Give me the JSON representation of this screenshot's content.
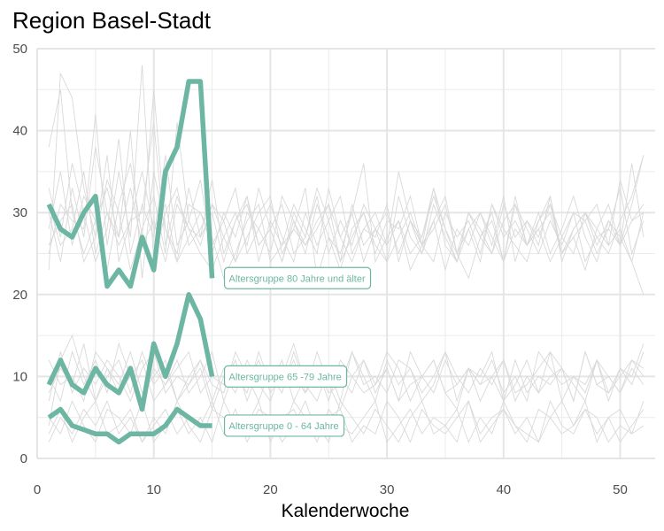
{
  "chart_data": {
    "type": "line",
    "title": "Region Basel-Stadt",
    "xlabel": "Kalenderwoche",
    "ylabel": "",
    "xlim": [
      0,
      53
    ],
    "ylim": [
      0,
      50
    ],
    "x_ticks": [
      0,
      10,
      20,
      30,
      40,
      50
    ],
    "y_ticks": [
      0,
      10,
      20,
      30,
      40,
      50
    ],
    "grid": true,
    "highlight_color": "#6db6a3",
    "background_color": "#d9d9d9",
    "highlight_series": [
      {
        "label": "Altersgruppe 80 Jahre und älter",
        "x": [
          1,
          2,
          3,
          4,
          5,
          6,
          7,
          8,
          9,
          10,
          11,
          12,
          13,
          14,
          15
        ],
        "values": [
          31,
          28,
          27,
          30,
          32,
          21,
          23,
          21,
          27,
          23,
          35,
          38,
          46,
          46,
          22
        ]
      },
      {
        "label": "Altersgruppe 65 -79 Jahre",
        "x": [
          1,
          2,
          3,
          4,
          5,
          6,
          7,
          8,
          9,
          10,
          11,
          12,
          13,
          14,
          15
        ],
        "values": [
          9,
          12,
          9,
          8,
          11,
          9,
          8,
          11,
          6,
          14,
          10,
          14,
          20,
          17,
          10
        ]
      },
      {
        "label": "Altersgruppe 0 - 64 Jahre",
        "x": [
          1,
          2,
          3,
          4,
          5,
          6,
          7,
          8,
          9,
          10,
          11,
          12,
          13,
          14,
          15
        ],
        "values": [
          5,
          6,
          4,
          3.5,
          3,
          3,
          2,
          3,
          3,
          3,
          4,
          6,
          5,
          4,
          4
        ]
      }
    ],
    "background_series": [
      {
        "group": "80+",
        "values": [
          38,
          45,
          30,
          25,
          29,
          33,
          27,
          40,
          22,
          35,
          28,
          24,
          31,
          30,
          27,
          22,
          25,
          29,
          31,
          24,
          26,
          28,
          33,
          22,
          27,
          25,
          30,
          36,
          24,
          27,
          29,
          23,
          26,
          28,
          31,
          25,
          22,
          27,
          30,
          24,
          28,
          26,
          29,
          32,
          25,
          27,
          23,
          28,
          31,
          26,
          29,
          30
        ]
      },
      {
        "group": "80+",
        "values": [
          23,
          47,
          44,
          33,
          27,
          37,
          24,
          29,
          30,
          41,
          26,
          32,
          28,
          25,
          23,
          27,
          30,
          26,
          33,
          28,
          24,
          29,
          25,
          31,
          27,
          23,
          28,
          30,
          26,
          24,
          32,
          27,
          25,
          29,
          23,
          28,
          26,
          30,
          27,
          24,
          31,
          28,
          25,
          29,
          26,
          30,
          24,
          27,
          28,
          33,
          25,
          29
        ]
      },
      {
        "group": "80+",
        "values": [
          25,
          31,
          29,
          28,
          42,
          26,
          35,
          27,
          48,
          24,
          30,
          33,
          26,
          28,
          31,
          29,
          24,
          27,
          30,
          32,
          25,
          28,
          26,
          29,
          31,
          27,
          24,
          28,
          30,
          26,
          29,
          25,
          27,
          32,
          28,
          24,
          30,
          27,
          25,
          29,
          31,
          26,
          28,
          24,
          27,
          30,
          29,
          25,
          28,
          26,
          36,
          27
        ]
      },
      {
        "group": "80+",
        "values": [
          33,
          27,
          36,
          30,
          24,
          28,
          39,
          25,
          31,
          27,
          37,
          26,
          29,
          34,
          25,
          30,
          27,
          32,
          24,
          29,
          26,
          31,
          28,
          25,
          33,
          27,
          30,
          24,
          28,
          26,
          35,
          29,
          25,
          31,
          27,
          24,
          28,
          30,
          26,
          32,
          24,
          29,
          27,
          31,
          25,
          28,
          30,
          26,
          29,
          27,
          24,
          30
        ]
      },
      {
        "group": "80+",
        "values": [
          28,
          35,
          26,
          32,
          29,
          23,
          31,
          36,
          27,
          45,
          28,
          25,
          33,
          27,
          30,
          24,
          29,
          32,
          26,
          28,
          31,
          25,
          27,
          33,
          29,
          24,
          31,
          26,
          28,
          30,
          25,
          29,
          27,
          33,
          26,
          24,
          30,
          28,
          25,
          31,
          27,
          29,
          26,
          32,
          24,
          28,
          30,
          27,
          25,
          29,
          32,
          37
        ]
      },
      {
        "group": "80+",
        "values": [
          30,
          24,
          33,
          27,
          38,
          30,
          26,
          29,
          35,
          28,
          31,
          24,
          27,
          30,
          26,
          29,
          33,
          25,
          28,
          31,
          27,
          24,
          30,
          26,
          29,
          32,
          25,
          28,
          27,
          31,
          24,
          29,
          26,
          33,
          28,
          25,
          30,
          27,
          29,
          24,
          32,
          26,
          28,
          30,
          25,
          27,
          29,
          31,
          26,
          28,
          24,
          20
        ]
      },
      {
        "group": "80+",
        "values": [
          26,
          29,
          31,
          24,
          27,
          34,
          30,
          23,
          28,
          32,
          25,
          41,
          29,
          26,
          31,
          27,
          24,
          30,
          28,
          25,
          32,
          29,
          26,
          28,
          31,
          24,
          27,
          30,
          25,
          29,
          28,
          32,
          26,
          24,
          30,
          27,
          29,
          25,
          31,
          28,
          26,
          24,
          29,
          31,
          27,
          25,
          30,
          28,
          26,
          34,
          29,
          31
        ]
      },
      {
        "group": "80+",
        "values": [
          31,
          26,
          28,
          35,
          25,
          30,
          27,
          33,
          26,
          29,
          24,
          31,
          28,
          27,
          34,
          25,
          29,
          31,
          26,
          28,
          24,
          30,
          27,
          32,
          25,
          29,
          26,
          31,
          28,
          24,
          27,
          30,
          26,
          29,
          32,
          25,
          28,
          24,
          31,
          27,
          29,
          26,
          30,
          25,
          28,
          32,
          27,
          24,
          29,
          26,
          31,
          37
        ]
      },
      {
        "group": "65-79",
        "values": [
          4,
          12,
          15,
          10,
          7,
          11,
          9,
          13,
          8,
          10,
          12,
          7,
          9,
          11,
          6,
          10,
          8,
          12,
          9,
          7,
          11,
          10,
          8,
          13,
          9,
          6,
          10,
          12,
          8,
          11,
          7,
          9,
          10,
          12,
          8,
          6,
          11,
          9,
          10,
          7,
          12,
          8,
          10,
          9,
          11,
          7,
          13,
          9,
          8,
          10,
          12,
          11
        ]
      },
      {
        "group": "65-79",
        "values": [
          10,
          7,
          13,
          9,
          12,
          8,
          14,
          10,
          7,
          11,
          9,
          12,
          8,
          10,
          13,
          7,
          11,
          9,
          12,
          8,
          10,
          14,
          9,
          7,
          11,
          10,
          8,
          12,
          9,
          11,
          7,
          13,
          10,
          8,
          12,
          9,
          11,
          7,
          10,
          12,
          8,
          9,
          11,
          13,
          7,
          10,
          9,
          12,
          8,
          11,
          10,
          14
        ]
      },
      {
        "group": "65-79",
        "values": [
          8,
          11,
          9,
          14,
          7,
          10,
          12,
          8,
          13,
          9,
          11,
          7,
          10,
          12,
          9,
          8,
          13,
          10,
          7,
          11,
          9,
          12,
          8,
          10,
          11,
          7,
          13,
          9,
          10,
          8,
          12,
          11,
          7,
          9,
          13,
          10,
          8,
          11,
          9,
          12,
          7,
          10,
          8,
          13,
          11,
          9,
          7,
          12,
          10,
          8,
          11,
          9
        ]
      },
      {
        "group": "65-79",
        "values": [
          12,
          9,
          10,
          7,
          13,
          11,
          8,
          10,
          12,
          7,
          9,
          11,
          13,
          8,
          10,
          9,
          12,
          7,
          11,
          10,
          8,
          13,
          9,
          11,
          7,
          12,
          10,
          8,
          9,
          13,
          11,
          7,
          10,
          12,
          8,
          9,
          11,
          10,
          13,
          7,
          9,
          12,
          8,
          10,
          11,
          7,
          13,
          9,
          10,
          8,
          12,
          10
        ]
      },
      {
        "group": "65-79",
        "values": [
          7,
          13,
          8,
          11,
          9,
          12,
          10,
          7,
          11,
          13,
          8,
          10,
          9,
          12,
          7,
          11,
          10,
          8,
          13,
          9,
          12,
          7,
          10,
          11,
          8,
          9,
          13,
          10,
          7,
          12,
          9,
          11,
          8,
          10,
          13,
          7,
          11,
          9,
          12,
          8,
          10,
          7,
          13,
          11,
          9,
          10,
          8,
          12,
          7,
          11,
          9,
          13
        ]
      },
      {
        "group": "0-64",
        "values": [
          2,
          5,
          3,
          6,
          4,
          7,
          3,
          5,
          2,
          4,
          6,
          3,
          5,
          4,
          7,
          3,
          6,
          2,
          5,
          4,
          3,
          7,
          5,
          2,
          6,
          4,
          3,
          5,
          7,
          2,
          4,
          6,
          3,
          5,
          4,
          2,
          7,
          3,
          5,
          6,
          4,
          3,
          2,
          5,
          7,
          4,
          6,
          3,
          5,
          2,
          4,
          6
        ]
      },
      {
        "group": "0-64",
        "values": [
          5,
          3,
          7,
          4,
          2,
          6,
          5,
          3,
          7,
          2,
          4,
          6,
          3,
          5,
          2,
          7,
          4,
          3,
          6,
          5,
          2,
          4,
          7,
          3,
          5,
          6,
          2,
          4,
          3,
          7,
          5,
          2,
          6,
          4,
          3,
          5,
          7,
          2,
          4,
          6,
          3,
          5,
          2,
          7,
          4,
          3,
          6,
          5,
          2,
          4,
          3,
          7
        ]
      },
      {
        "group": "0-64",
        "values": [
          3,
          6,
          2,
          5,
          7,
          3,
          4,
          6,
          2,
          5,
          3,
          7,
          4,
          2,
          6,
          5,
          3,
          4,
          7,
          2,
          5,
          6,
          3,
          4,
          2,
          7,
          5,
          3,
          6,
          4,
          2,
          5,
          7,
          3,
          4,
          6,
          2,
          5,
          3,
          7,
          4,
          2,
          6,
          5,
          3,
          4,
          7,
          2,
          5,
          6,
          3,
          4
        ]
      }
    ]
  }
}
